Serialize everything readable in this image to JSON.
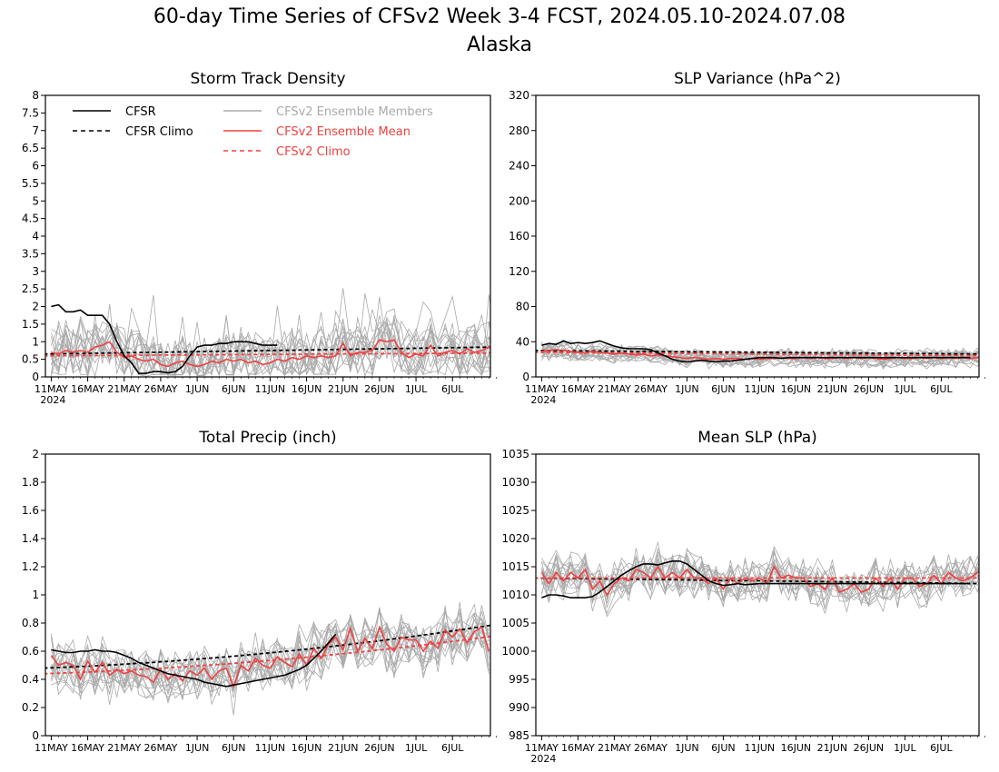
{
  "title": "60-day Time Series of CFSv2 Week 3-4 FCST, 2024.05.10-2024.07.08",
  "subtitle": "Alaska",
  "legend": {
    "entries": [
      {
        "label": "CFSR",
        "color": "#000000",
        "dash": "solid"
      },
      {
        "label": "CFSR Climo",
        "color": "#000000",
        "dash": "dashed"
      },
      {
        "label": "CFSv2 Ensemble Members",
        "color": "#aaaaaa",
        "dash": "solid"
      },
      {
        "label": "CFSv2 Ensemble Mean",
        "color": "#f04040",
        "dash": "solid"
      },
      {
        "label": "CFSv2 Climo",
        "color": "#f04040",
        "dash": "dashed"
      }
    ]
  },
  "colors": {
    "cfsr": "#000000",
    "members": "#aaaaaa",
    "mean": "#f04040"
  },
  "chart_data": [
    {
      "type": "line",
      "title": "Storm Track Density",
      "xlabel": "",
      "ylabel": "",
      "ylim": [
        0,
        8
      ],
      "yticks": [
        "0",
        "0.5",
        "1",
        "1.5",
        "2",
        "2.5",
        "3",
        "3.5",
        "4",
        "4.5",
        "5",
        "5.5",
        "6",
        "6.5",
        "7",
        "7.5",
        "8"
      ],
      "xticks": [
        "11MAY",
        "16MAY",
        "21MAY",
        "26MAY",
        "1JUN",
        "6JUN",
        "11JUN",
        "16JUN",
        "21JUN",
        "26JUN",
        "1JUL",
        "6JUL"
      ],
      "xyear": "2024",
      "grid": false,
      "legend": "top-left",
      "series": [
        {
          "name": "CFSR",
          "x": [
            1,
            2,
            3,
            4,
            5,
            6,
            7,
            8,
            9,
            10,
            11,
            12,
            13,
            14,
            15,
            16,
            17,
            18,
            19,
            20,
            21,
            22,
            23,
            24,
            25,
            26,
            27,
            28,
            29,
            30,
            31,
            32
          ],
          "values": [
            2.0,
            2.05,
            1.85,
            1.85,
            1.9,
            1.75,
            1.75,
            1.75,
            1.5,
            1.0,
            0.6,
            0.4,
            0.1,
            0.1,
            0.15,
            0.15,
            0.12,
            0.15,
            0.3,
            0.6,
            0.85,
            0.9,
            0.9,
            0.95,
            0.95,
            1.0,
            1.0,
            1.0,
            0.95,
            0.9,
            0.9,
            0.9
          ]
        },
        {
          "name": "CFSR Climo",
          "type": "climo",
          "start": 0.65,
          "end": 0.85
        },
        {
          "name": "CFSv2 Climo",
          "type": "climo",
          "start": 0.6,
          "end": 0.68
        },
        {
          "name": "CFSv2 Ensemble Mean",
          "values": [
            0.7,
            0.65,
            0.75,
            0.7,
            0.75,
            0.7,
            0.85,
            0.9,
            1.0,
            0.7,
            0.55,
            0.6,
            0.5,
            0.45,
            0.5,
            0.35,
            0.3,
            0.4,
            0.45,
            0.35,
            0.3,
            0.35,
            0.45,
            0.4,
            0.5,
            0.45,
            0.5,
            0.4,
            0.45,
            0.35,
            0.4,
            0.5,
            0.45,
            0.55,
            0.5,
            0.6,
            0.55,
            0.6,
            0.55,
            0.6,
            0.95,
            0.6,
            0.7,
            0.7,
            0.75,
            1.05,
            1.0,
            1.05,
            0.7,
            0.55,
            0.65,
            0.6,
            0.9,
            0.6,
            0.7,
            0.75,
            0.65,
            0.8,
            0.7,
            0.75,
            0.85,
            0.55
          ]
        }
      ]
    },
    {
      "type": "line",
      "title": "SLP Variance (hPa^2)",
      "xlabel": "",
      "ylabel": "",
      "ylim": [
        0,
        320
      ],
      "yticks": [
        "0",
        "40",
        "80",
        "120",
        "160",
        "200",
        "240",
        "280",
        "320"
      ],
      "xticks": [
        "11MAY",
        "16MAY",
        "21MAY",
        "26MAY",
        "1JUN",
        "6JUN",
        "11JUN",
        "16JUN",
        "21JUN",
        "26JUN",
        "1JUL",
        "6JUL"
      ],
      "xyear": "2024",
      "grid": false,
      "series": [
        {
          "name": "CFSR",
          "x": [
            1,
            2,
            3,
            4,
            5,
            6,
            7,
            8,
            9,
            10,
            11,
            12,
            13,
            14,
            15,
            16,
            17,
            18,
            19,
            20,
            21,
            22,
            23,
            24,
            25,
            26,
            27,
            28,
            29,
            30,
            31,
            32,
            33,
            34,
            35,
            36,
            37,
            38,
            39,
            40,
            41,
            42,
            43,
            44,
            45,
            46,
            47,
            48,
            49,
            50,
            51,
            52,
            53,
            54,
            55,
            56,
            57,
            58,
            59,
            60
          ],
          "values": [
            36,
            38,
            37,
            41,
            38,
            39,
            38,
            39,
            41,
            38,
            35,
            33,
            32,
            32,
            32,
            31,
            27,
            24,
            20,
            18,
            17,
            18,
            19,
            18,
            17,
            18,
            18,
            19,
            20,
            21,
            22,
            22,
            22,
            21,
            22,
            22,
            22,
            22,
            22,
            22,
            22,
            22,
            22,
            22,
            22,
            22,
            22,
            22,
            22,
            22,
            22,
            22,
            22,
            22,
            22,
            22,
            22,
            22,
            22,
            22
          ]
        },
        {
          "name": "CFSR Climo",
          "type": "climo",
          "start": 30,
          "end": 26
        },
        {
          "name": "CFSv2 Climo",
          "type": "climo",
          "start": 28,
          "end": 24
        },
        {
          "name": "CFSv2 Ensemble Mean",
          "values": [
            29,
            30,
            31,
            30,
            29,
            28,
            27,
            29,
            28,
            27,
            26,
            27,
            26,
            25,
            26,
            24,
            25,
            24,
            23,
            22,
            21,
            22,
            21,
            20,
            21,
            20,
            21,
            21,
            20,
            21,
            20,
            21,
            21,
            22,
            21,
            21,
            22,
            21,
            22,
            21,
            21,
            22,
            21,
            22,
            21,
            22,
            21,
            20,
            21,
            22,
            21,
            21,
            22,
            21,
            22,
            21,
            22,
            21,
            22,
            21,
            22,
            21
          ]
        }
      ]
    },
    {
      "type": "line",
      "title": "Total Precip (inch)",
      "xlabel": "",
      "ylabel": "",
      "ylim": [
        0,
        2
      ],
      "yticks": [
        "0",
        "0.2",
        "0.4",
        "0.6",
        "0.8",
        "1",
        "1.2",
        "1.4",
        "1.6",
        "1.8",
        "2"
      ],
      "xticks": [
        "11MAY",
        "16MAY",
        "21MAY",
        "26MAY",
        "1JUN",
        "6JUN",
        "11JUN",
        "16JUN",
        "21JUN",
        "26JUN",
        "1JUL",
        "6JUL"
      ],
      "grid": false,
      "series": [
        {
          "name": "CFSR",
          "x": [
            1,
            2,
            3,
            4,
            5,
            6,
            7,
            8,
            9,
            10,
            11,
            12,
            13,
            14,
            15,
            16,
            17,
            18,
            19,
            20,
            21,
            22,
            23,
            24,
            25,
            26,
            27,
            28,
            29,
            30,
            31,
            32,
            33,
            34,
            35,
            36,
            37,
            38,
            39,
            40
          ],
          "values": [
            0.61,
            0.6,
            0.59,
            0.59,
            0.6,
            0.6,
            0.61,
            0.6,
            0.6,
            0.59,
            0.57,
            0.55,
            0.52,
            0.5,
            0.48,
            0.46,
            0.44,
            0.43,
            0.42,
            0.41,
            0.4,
            0.38,
            0.37,
            0.36,
            0.35,
            0.36,
            0.37,
            0.38,
            0.39,
            0.4,
            0.41,
            0.42,
            0.43,
            0.45,
            0.47,
            0.5,
            0.55,
            0.6,
            0.66,
            0.72
          ]
        },
        {
          "name": "CFSR Climo",
          "type": "climo",
          "start": 0.48,
          "end": 0.79,
          "curve": true
        },
        {
          "name": "CFSv2 Climo",
          "type": "climo",
          "start": 0.44,
          "end": 0.71,
          "curve": true
        },
        {
          "name": "CFSv2 Ensemble Mean",
          "values": [
            0.57,
            0.5,
            0.52,
            0.5,
            0.4,
            0.53,
            0.45,
            0.52,
            0.43,
            0.47,
            0.44,
            0.46,
            0.43,
            0.42,
            0.38,
            0.47,
            0.4,
            0.44,
            0.39,
            0.46,
            0.43,
            0.48,
            0.4,
            0.46,
            0.48,
            0.35,
            0.5,
            0.46,
            0.55,
            0.5,
            0.48,
            0.56,
            0.52,
            0.49,
            0.58,
            0.5,
            0.62,
            0.55,
            0.65,
            0.7,
            0.61,
            0.76,
            0.6,
            0.69,
            0.62,
            0.77,
            0.65,
            0.6,
            0.7,
            0.68,
            0.68,
            0.6,
            0.67,
            0.62,
            0.75,
            0.7,
            0.76,
            0.66,
            0.74,
            0.77,
            0.6
          ]
        }
      ]
    },
    {
      "type": "line",
      "title": "Mean SLP (hPa)",
      "xlabel": "",
      "ylabel": "",
      "ylim": [
        985,
        1035
      ],
      "yticks": [
        "985",
        "990",
        "995",
        "1000",
        "1005",
        "1010",
        "1015",
        "1020",
        "1025",
        "1030",
        "1035"
      ],
      "xticks": [
        "11MAY",
        "16MAY",
        "21MAY",
        "26MAY",
        "1JUN",
        "6JUN",
        "11JUN",
        "16JUN",
        "21JUN",
        "26JUN",
        "1JUL",
        "6JUL"
      ],
      "xyear": "2024",
      "grid": false,
      "series": [
        {
          "name": "CFSR",
          "x": [
            1,
            2,
            3,
            4,
            5,
            6,
            7,
            8,
            9,
            10,
            11,
            12,
            13,
            14,
            15,
            16,
            17,
            18,
            19,
            20,
            21,
            22,
            23,
            24,
            25,
            26,
            27,
            28,
            29,
            30,
            31,
            32,
            33,
            34,
            35,
            36,
            37,
            38,
            39,
            40,
            41,
            42,
            43,
            44,
            45,
            46,
            47,
            48,
            49,
            50,
            51,
            52,
            53,
            54,
            55,
            56,
            57,
            58,
            59,
            60
          ],
          "values": [
            1009.5,
            1010,
            1010,
            1009.8,
            1009.5,
            1009.5,
            1009.5,
            1009.7,
            1010.5,
            1011.5,
            1012.5,
            1013.5,
            1014.3,
            1015,
            1015.5,
            1015.5,
            1015.3,
            1015.7,
            1016,
            1016,
            1015.5,
            1014.5,
            1013.5,
            1012.5,
            1012,
            1011.7,
            1011.8,
            1012,
            1011.8,
            1011.9,
            1012,
            1012,
            1012,
            1012,
            1012,
            1012,
            1012,
            1012,
            1012,
            1012,
            1012,
            1012,
            1012,
            1012,
            1012,
            1012,
            1012,
            1012,
            1012,
            1012,
            1012,
            1012,
            1012,
            1012,
            1012,
            1012,
            1012,
            1012,
            1012,
            1012
          ]
        },
        {
          "name": "CFSR Climo",
          "type": "climo",
          "start": 1013,
          "end": 1012
        },
        {
          "name": "CFSv2 Climo",
          "type": "climo",
          "start": 1013,
          "end": 1013
        },
        {
          "name": "CFSv2 Ensemble Mean",
          "values": [
            1014,
            1012,
            1014,
            1012.5,
            1014,
            1013,
            1014.5,
            1011,
            1012.5,
            1010,
            1012,
            1013,
            1012.5,
            1014.5,
            1014,
            1013,
            1015,
            1013,
            1014,
            1013,
            1014.5,
            1013,
            1013,
            1012,
            1013,
            1011,
            1013,
            1012,
            1013,
            1012.5,
            1013,
            1012,
            1015,
            1013,
            1013.5,
            1013,
            1013,
            1011.5,
            1012,
            1011,
            1013,
            1010.5,
            1011,
            1012,
            1010.5,
            1011,
            1013,
            1011.5,
            1013,
            1011,
            1013,
            1013,
            1011.5,
            1012,
            1013.5,
            1012,
            1014,
            1013,
            1012.5,
            1013,
            1014,
            1014
          ]
        }
      ]
    }
  ]
}
